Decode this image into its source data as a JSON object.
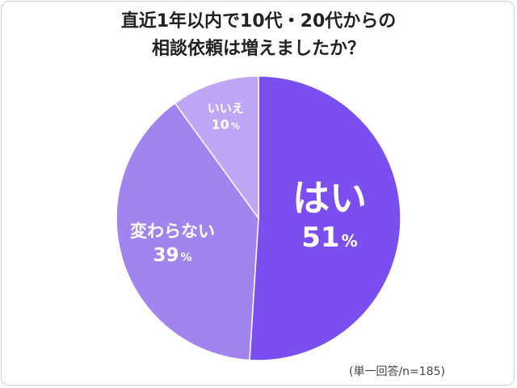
{
  "chart_data": {
    "type": "pie",
    "title_lines": [
      "直近1年以内で10代・20代からの",
      "相談依頼は増えましたか？"
    ],
    "slices": [
      {
        "label": "はい",
        "value": 51,
        "display": "51",
        "color": "#7b4ef0"
      },
      {
        "label": "変わらない",
        "value": 39,
        "display": "39",
        "color": "#a184ee"
      },
      {
        "label": "いいえ",
        "value": 10,
        "display": "10",
        "color": "#bfa7f5"
      }
    ],
    "percent_sign": "%",
    "note": "(単一回答/n=185)"
  }
}
